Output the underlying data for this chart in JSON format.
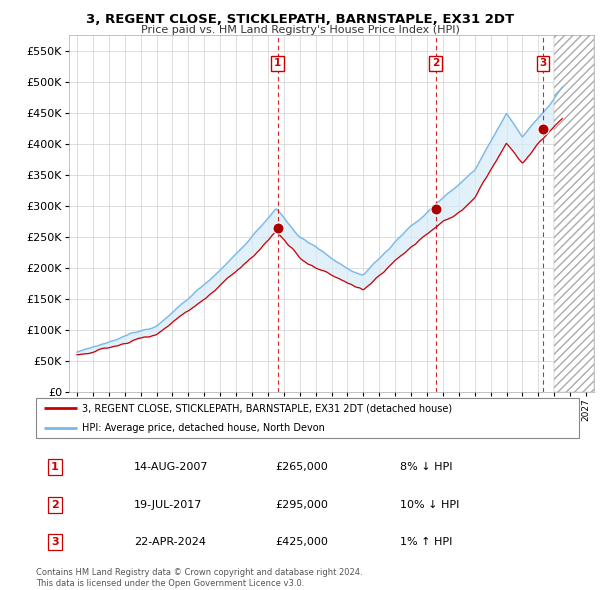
{
  "title": "3, REGENT CLOSE, STICKLEPATH, BARNSTAPLE, EX31 2DT",
  "subtitle": "Price paid vs. HM Land Registry's House Price Index (HPI)",
  "ylim": [
    0,
    575000
  ],
  "yticks": [
    0,
    50000,
    100000,
    150000,
    200000,
    250000,
    300000,
    350000,
    400000,
    450000,
    500000,
    550000
  ],
  "xlim_start": 1994.5,
  "xlim_end": 2027.5,
  "sale_dates": [
    2007.617,
    2017.546,
    2024.31
  ],
  "sale_prices": [
    265000,
    295000,
    425000
  ],
  "sale_labels": [
    "1",
    "2",
    "3"
  ],
  "legend_line1": "3, REGENT CLOSE, STICKLEPATH, BARNSTAPLE, EX31 2DT (detached house)",
  "legend_line2": "HPI: Average price, detached house, North Devon",
  "table_rows": [
    [
      "1",
      "14-AUG-2007",
      "£265,000",
      "8% ↓ HPI"
    ],
    [
      "2",
      "19-JUL-2017",
      "£295,000",
      "10% ↓ HPI"
    ],
    [
      "3",
      "22-APR-2024",
      "£425,000",
      "1% ↑ HPI"
    ]
  ],
  "footer": "Contains HM Land Registry data © Crown copyright and database right 2024.\nThis data is licensed under the Open Government Licence v3.0.",
  "hpi_color": "#7ab8e8",
  "price_color": "#cc0000",
  "sale_marker_color": "#aa0000",
  "background_color": "#ffffff",
  "grid_color": "#d0d0d0",
  "vline_color": "#cc0000",
  "fill_color": "#d6eaf8",
  "hatch_start": 2025.0
}
